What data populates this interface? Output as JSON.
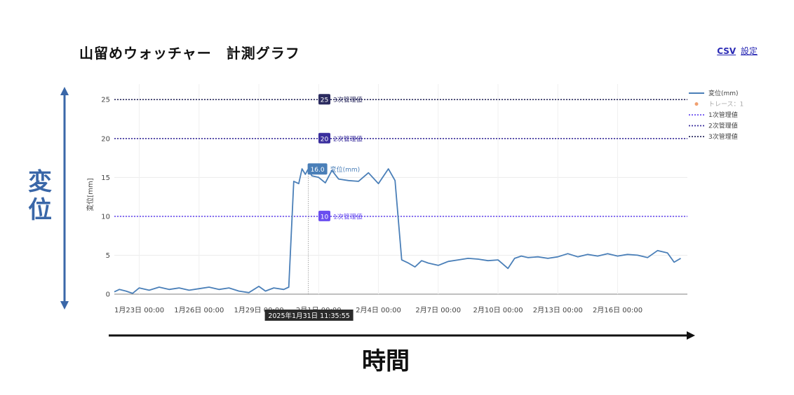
{
  "header": {
    "title": "山留めウォッチャー　計測グラフ",
    "csv_link": "CSV",
    "settings_link": "設定"
  },
  "annotations": {
    "y_arrow_label": "変位",
    "x_arrow_label": "時間"
  },
  "hover_label": "2025年1月31日 11:35:55",
  "colors": {
    "series": "#4a7fb8",
    "line1": "#6a4ef0",
    "line2": "#3b2f9e",
    "line3": "#2c2c60",
    "trace": "#f0a070",
    "arrow_blue": "#3a67a8"
  },
  "chart_data": {
    "type": "line",
    "ylabel": "変位[mm]",
    "xlabel": "",
    "ylim": [
      0,
      27
    ],
    "yticks": [
      0,
      5,
      10,
      15,
      20,
      25
    ],
    "xlim": [
      "2025-01-21T18:00",
      "2025-02-19T12:00"
    ],
    "xticks": [
      {
        "t": "2025-01-23T00:00",
        "label": "1月23日 00:00"
      },
      {
        "t": "2025-01-26T00:00",
        "label": "1月26日 00:00"
      },
      {
        "t": "2025-01-29T00:00",
        "label": "1月29日 00:00"
      },
      {
        "t": "2025-02-01T00:00",
        "label": "2月1日 00:00"
      },
      {
        "t": "2025-02-04T00:00",
        "label": "2月4日 00:00"
      },
      {
        "t": "2025-02-07T00:00",
        "label": "2月7日 00:00"
      },
      {
        "t": "2025-02-10T00:00",
        "label": "2月10日 00:00"
      },
      {
        "t": "2025-02-13T00:00",
        "label": "2月13日 00:00"
      },
      {
        "t": "2025-02-16T00:00",
        "label": "2月16日 00:00"
      }
    ],
    "legend": [
      {
        "label": "変位(mm)",
        "style": "line",
        "color": "#4a7fb8"
      },
      {
        "label": "トレース：1",
        "style": "dot",
        "color": "#f0a070",
        "muted": true
      },
      {
        "label": "1次管理値",
        "style": "dotted",
        "color": "#6a4ef0"
      },
      {
        "label": "2次管理値",
        "style": "dotted",
        "color": "#3b2f9e"
      },
      {
        "label": "3次管理値",
        "style": "dotted",
        "color": "#2c2c60"
      }
    ],
    "thresholds": [
      {
        "name": "1次管理値",
        "value": 10,
        "badge": "10",
        "color": "#6a4ef0"
      },
      {
        "name": "2次管理値",
        "value": 20,
        "badge": "20",
        "color": "#3b2f9e"
      },
      {
        "name": "3次管理値",
        "value": 25,
        "badge": "25",
        "color": "#2c2c60"
      }
    ],
    "hover": {
      "series_name": "変位(mm)",
      "value": 16.0,
      "badge": "16.0",
      "t": "2025-01-31T11:35:55"
    },
    "series": [
      {
        "name": "変位(mm)",
        "points": [
          [
            "2025-01-21T18:00",
            0.3
          ],
          [
            "2025-01-22T00:00",
            0.6
          ],
          [
            "2025-01-22T08:00",
            0.4
          ],
          [
            "2025-01-22T16:00",
            0.1
          ],
          [
            "2025-01-23T00:00",
            0.8
          ],
          [
            "2025-01-23T12:00",
            0.5
          ],
          [
            "2025-01-24T00:00",
            0.9
          ],
          [
            "2025-01-24T12:00",
            0.6
          ],
          [
            "2025-01-25T00:00",
            0.8
          ],
          [
            "2025-01-25T12:00",
            0.5
          ],
          [
            "2025-01-26T00:00",
            0.7
          ],
          [
            "2025-01-26T12:00",
            0.9
          ],
          [
            "2025-01-27T00:00",
            0.6
          ],
          [
            "2025-01-27T12:00",
            0.8
          ],
          [
            "2025-01-28T00:00",
            0.4
          ],
          [
            "2025-01-28T12:00",
            0.2
          ],
          [
            "2025-01-29T00:00",
            1.0
          ],
          [
            "2025-01-29T08:00",
            0.4
          ],
          [
            "2025-01-29T18:00",
            0.8
          ],
          [
            "2025-01-30T06:00",
            0.6
          ],
          [
            "2025-01-30T12:00",
            0.9
          ],
          [
            "2025-01-30T18:00",
            14.5
          ],
          [
            "2025-01-31T00:00",
            14.2
          ],
          [
            "2025-01-31T04:00",
            16.1
          ],
          [
            "2025-01-31T08:00",
            15.4
          ],
          [
            "2025-01-31T11:00",
            16.0
          ],
          [
            "2025-01-31T16:00",
            15.2
          ],
          [
            "2025-02-01T00:00",
            15.0
          ],
          [
            "2025-02-01T08:00",
            14.3
          ],
          [
            "2025-02-01T16:00",
            15.9
          ],
          [
            "2025-02-02T00:00",
            14.8
          ],
          [
            "2025-02-02T12:00",
            14.6
          ],
          [
            "2025-02-03T00:00",
            14.5
          ],
          [
            "2025-02-03T12:00",
            15.6
          ],
          [
            "2025-02-04T00:00",
            14.2
          ],
          [
            "2025-02-04T12:00",
            16.1
          ],
          [
            "2025-02-04T20:00",
            14.6
          ],
          [
            "2025-02-05T04:00",
            4.4
          ],
          [
            "2025-02-05T12:00",
            4.0
          ],
          [
            "2025-02-05T20:00",
            3.5
          ],
          [
            "2025-02-06T04:00",
            4.3
          ],
          [
            "2025-02-06T12:00",
            4.0
          ],
          [
            "2025-02-07T00:00",
            3.7
          ],
          [
            "2025-02-07T12:00",
            4.2
          ],
          [
            "2025-02-08T00:00",
            4.4
          ],
          [
            "2025-02-08T12:00",
            4.6
          ],
          [
            "2025-02-09T00:00",
            4.5
          ],
          [
            "2025-02-09T12:00",
            4.3
          ],
          [
            "2025-02-10T00:00",
            4.4
          ],
          [
            "2025-02-10T12:00",
            3.3
          ],
          [
            "2025-02-10T20:00",
            4.6
          ],
          [
            "2025-02-11T04:00",
            4.9
          ],
          [
            "2025-02-11T12:00",
            4.7
          ],
          [
            "2025-02-12T00:00",
            4.8
          ],
          [
            "2025-02-12T12:00",
            4.6
          ],
          [
            "2025-02-13T00:00",
            4.8
          ],
          [
            "2025-02-13T12:00",
            5.2
          ],
          [
            "2025-02-14T00:00",
            4.8
          ],
          [
            "2025-02-14T12:00",
            5.1
          ],
          [
            "2025-02-15T00:00",
            4.9
          ],
          [
            "2025-02-15T12:00",
            5.2
          ],
          [
            "2025-02-16T00:00",
            4.9
          ],
          [
            "2025-02-16T12:00",
            5.1
          ],
          [
            "2025-02-17T00:00",
            5.0
          ],
          [
            "2025-02-17T12:00",
            4.7
          ],
          [
            "2025-02-18T00:00",
            5.6
          ],
          [
            "2025-02-18T12:00",
            5.3
          ],
          [
            "2025-02-18T20:00",
            4.1
          ],
          [
            "2025-02-19T04:00",
            4.6
          ]
        ]
      }
    ]
  }
}
